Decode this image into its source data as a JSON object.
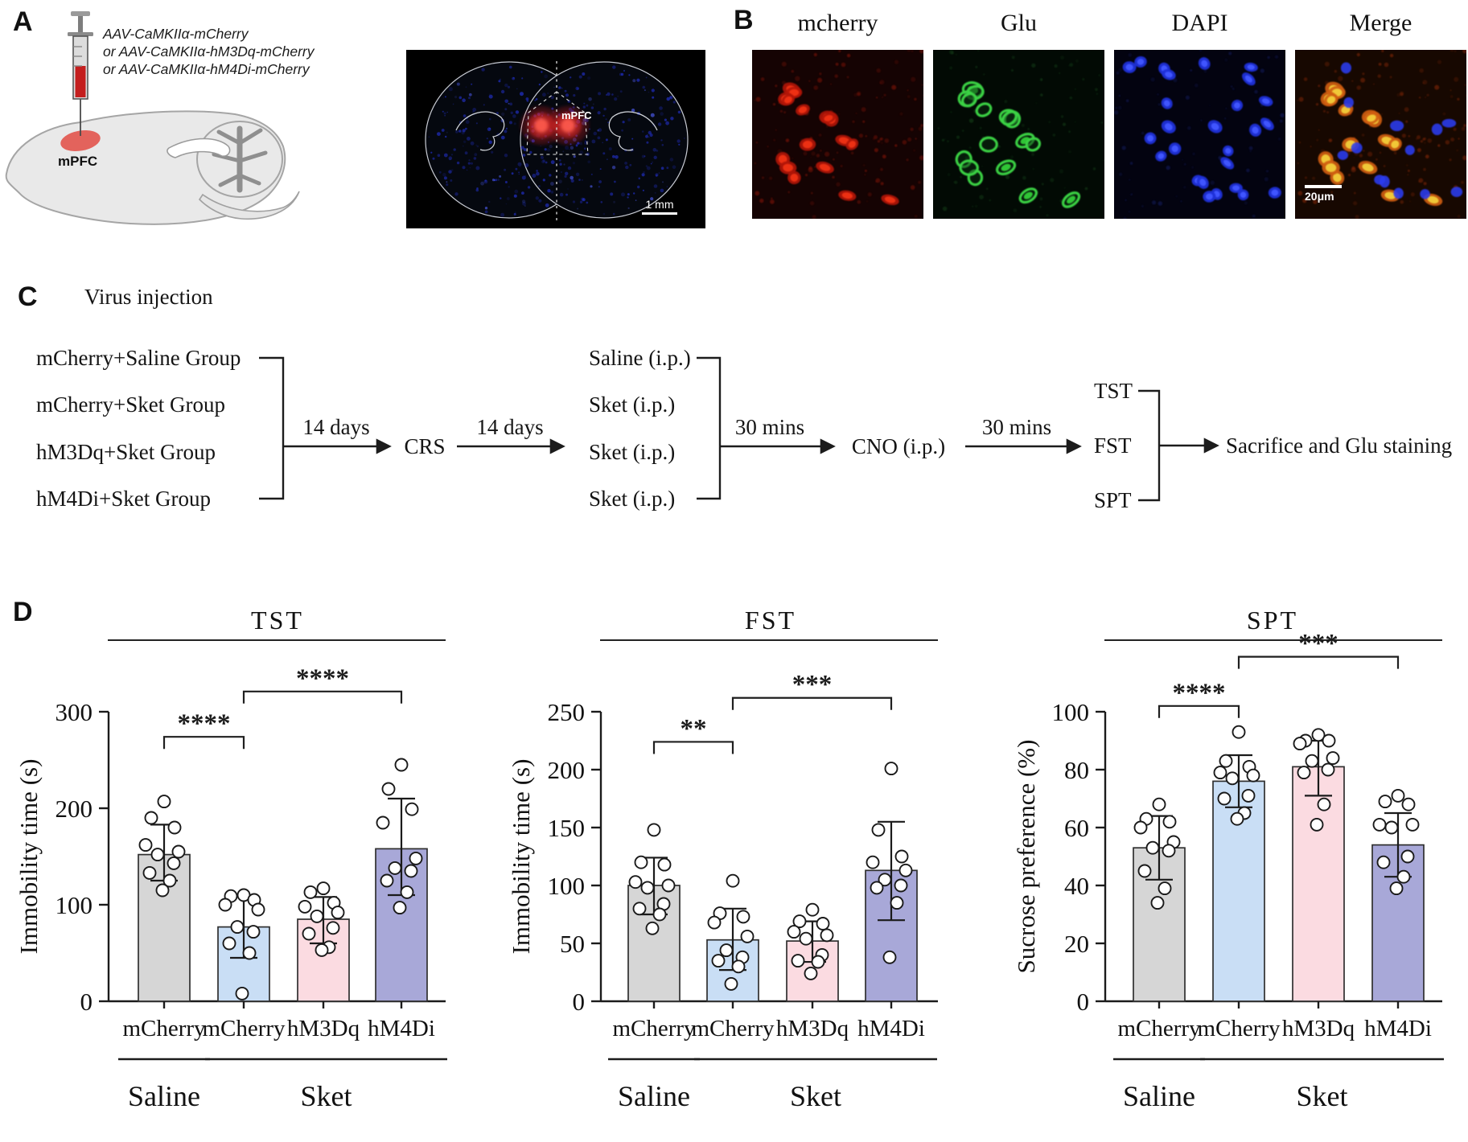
{
  "colors": {
    "bar_gray": "#d6d6d6",
    "bar_blue": "#c9def5",
    "bar_pink": "#fbdbe1",
    "bar_purple": "#a8a8d8",
    "bar_stroke": "#2f2f2f",
    "accent_red": "#e2574f",
    "line": "#1c1c1c"
  },
  "panelA": {
    "label": "A",
    "aav_lines": [
      "AAV-CaMKIIα-mCherry",
      "or AAV-CaMKIIα-hM3Dq-mCherry",
      "or AAV-CaMKIIα-hM4Di-mCherry"
    ],
    "brain_region_label": "mPFC",
    "coronal": {
      "region_label": "mPFC",
      "scale_bar": "1 mm"
    }
  },
  "panelB": {
    "label": "B",
    "channels": [
      "mcherry",
      "Glu",
      "DAPI",
      "Merge"
    ],
    "scale_bar": "20μm"
  },
  "panelC": {
    "label": "C",
    "title": "Virus injection",
    "groups": [
      "mCherry+Saline Group",
      "mCherry+Sket Group",
      "hM3Dq+Sket Group",
      "hM4Di+Sket Group"
    ],
    "interval1": "14 days",
    "crs": "CRS",
    "interval2": "14 days",
    "injections": [
      "Saline (i.p.)",
      "Sket (i.p.)",
      "Sket (i.p.)",
      "Sket (i.p.)"
    ],
    "interval3": "30 mins",
    "cno": "CNO (i.p.)",
    "interval4": "30 mins",
    "tests": [
      "TST",
      "FST",
      "SPT"
    ],
    "final": "Sacrifice and Glu staining"
  },
  "panelD": {
    "label": "D"
  },
  "chart_data": [
    {
      "type": "bar",
      "title": "TST",
      "ylabel": "Immobility time (s)",
      "ylim": [
        0,
        300
      ],
      "yticks": [
        0,
        100,
        200,
        300
      ],
      "categories": [
        "mCherry",
        "mCherry",
        "hM3Dq",
        "hM4Di"
      ],
      "groups": [
        {
          "label": "Saline",
          "bars": [
            0
          ]
        },
        {
          "label": "Sket",
          "bars": [
            1,
            2,
            3
          ]
        }
      ],
      "series": [
        {
          "name": "mCherry+Saline",
          "mean": 152,
          "sd_range": [
            125,
            183
          ],
          "color_key": "bar_gray",
          "points": [
            207,
            190,
            180,
            162,
            155,
            152,
            143,
            133,
            125,
            115
          ]
        },
        {
          "name": "mCherry+Sket",
          "mean": 77,
          "sd_range": [
            45,
            110
          ],
          "color_key": "bar_blue",
          "points": [
            110,
            109,
            105,
            100,
            95,
            77,
            72,
            60,
            50,
            8
          ]
        },
        {
          "name": "hM3Dq+Sket",
          "mean": 85,
          "sd_range": [
            60,
            108
          ],
          "color_key": "bar_pink",
          "points": [
            117,
            113,
            102,
            98,
            92,
            88,
            76,
            70,
            56,
            53
          ]
        },
        {
          "name": "hM4Di+Sket",
          "mean": 158,
          "sd_range": [
            110,
            210
          ],
          "color_key": "bar_purple",
          "points": [
            245,
            220,
            199,
            185,
            148,
            138,
            135,
            125,
            113,
            97
          ]
        }
      ],
      "significance": [
        {
          "from": 0,
          "to": 1,
          "level": 274,
          "stars": "****"
        },
        {
          "from": 1,
          "to": 3,
          "level": 321,
          "stars": "****"
        }
      ]
    },
    {
      "type": "bar",
      "title": "FST",
      "ylabel": "Immobility time (s)",
      "ylim": [
        0,
        250
      ],
      "yticks": [
        0,
        50,
        100,
        150,
        200,
        250
      ],
      "categories": [
        "mCherry",
        "mCherry",
        "hM3Dq",
        "hM4Di"
      ],
      "groups": [
        {
          "label": "Saline",
          "bars": [
            0
          ]
        },
        {
          "label": "Sket",
          "bars": [
            1,
            2,
            3
          ]
        }
      ],
      "series": [
        {
          "name": "mCherry+Saline",
          "mean": 100,
          "sd_range": [
            75,
            124
          ],
          "color_key": "bar_gray",
          "points": [
            148,
            120,
            118,
            103,
            100,
            98,
            84,
            80,
            75,
            63
          ]
        },
        {
          "name": "mCherry+Sket",
          "mean": 53,
          "sd_range": [
            27,
            80
          ],
          "color_key": "bar_blue",
          "points": [
            104,
            76,
            73,
            68,
            56,
            44,
            38,
            35,
            30,
            15
          ]
        },
        {
          "name": "hM3Dq+Sket",
          "mean": 52,
          "sd_range": [
            34,
            69
          ],
          "color_key": "bar_pink",
          "points": [
            79,
            69,
            67,
            60,
            57,
            54,
            40,
            35,
            34,
            24
          ]
        },
        {
          "name": "hM4Di+Sket",
          "mean": 113,
          "sd_range": [
            70,
            155
          ],
          "color_key": "bar_purple",
          "points": [
            201,
            148,
            125,
            120,
            113,
            105,
            100,
            98,
            85,
            38
          ]
        }
      ],
      "significance": [
        {
          "from": 0,
          "to": 1,
          "level": 224,
          "stars": "**"
        },
        {
          "from": 1,
          "to": 3,
          "level": 262,
          "stars": "***"
        }
      ]
    },
    {
      "type": "bar",
      "title": "SPT",
      "ylabel": "Sucrose preference (%)",
      "ylim": [
        0,
        100
      ],
      "yticks": [
        0,
        20,
        40,
        60,
        80,
        100
      ],
      "categories": [
        "mCherry",
        "mCherry",
        "hM3Dq",
        "hM4Di"
      ],
      "groups": [
        {
          "label": "Saline",
          "bars": [
            0
          ]
        },
        {
          "label": "Sket",
          "bars": [
            1,
            2,
            3
          ]
        }
      ],
      "series": [
        {
          "name": "mCherry+Saline",
          "mean": 53,
          "sd_range": [
            42,
            64
          ],
          "color_key": "bar_gray",
          "points": [
            68,
            63,
            62,
            60,
            55,
            53,
            52,
            45,
            39,
            34
          ]
        },
        {
          "name": "mCherry+Sket",
          "mean": 76,
          "sd_range": [
            67,
            85
          ],
          "color_key": "bar_blue",
          "points": [
            93,
            83,
            81,
            79,
            78,
            77,
            71,
            70,
            65,
            63
          ]
        },
        {
          "name": "hM3Dq+Sket",
          "mean": 81,
          "sd_range": [
            71,
            90
          ],
          "color_key": "bar_pink",
          "points": [
            92,
            90,
            90,
            89,
            84,
            83,
            80,
            79,
            68,
            61
          ]
        },
        {
          "name": "hM4Di+Sket",
          "mean": 54,
          "sd_range": [
            43,
            65
          ],
          "color_key": "bar_purple",
          "points": [
            71,
            69,
            68,
            61,
            61,
            60,
            50,
            48,
            43,
            39
          ]
        }
      ],
      "significance": [
        {
          "from": 0,
          "to": 1,
          "level": 102,
          "stars": "****"
        },
        {
          "from": 1,
          "to": 3,
          "level": 119,
          "stars": "***"
        }
      ]
    }
  ]
}
